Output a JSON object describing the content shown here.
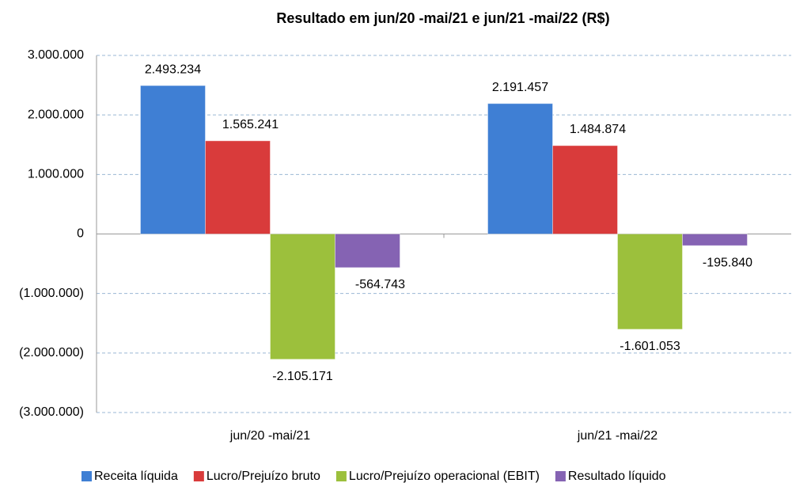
{
  "chart_data": {
    "type": "bar",
    "title": "Resultado em jun/20 -mai/21 e jun/21 -mai/22 (R$)",
    "categories": [
      "jun/20 -mai/21",
      "jun/21 -mai/22"
    ],
    "series": [
      {
        "name": "Receita líquida",
        "color": "#3f7fd4",
        "values": [
          2493234,
          2191457
        ],
        "value_labels": [
          "2.493.234",
          "2.191.457"
        ]
      },
      {
        "name": "Lucro/Prejuízo bruto",
        "color": "#d93b3b",
        "values": [
          1565241,
          1484874
        ],
        "value_labels": [
          "1.565.241",
          "1.484.874"
        ]
      },
      {
        "name": "Lucro/Prejuízo operacional (EBIT)",
        "color": "#9cc03c",
        "values": [
          -2105171,
          -1601053
        ],
        "value_labels": [
          "-2.105.171",
          "-1.601.053"
        ]
      },
      {
        "name": "Resultado líquido",
        "color": "#8563b3",
        "values": [
          -564743,
          -195840
        ],
        "value_labels": [
          "-564.743",
          "-195.840"
        ]
      }
    ],
    "ylim": [
      -3000000,
      3000000
    ],
    "yticks": [
      {
        "value": -3000000,
        "label": "(3.000.000)"
      },
      {
        "value": -2000000,
        "label": "(2.000.000)"
      },
      {
        "value": -1000000,
        "label": "(1.000.000)"
      },
      0,
      {
        "value": 1000000,
        "label": "1.000.000"
      },
      {
        "value": 2000000,
        "label": "2.000.000"
      },
      {
        "value": 3000000,
        "label": "3.000.000"
      }
    ],
    "grid": true,
    "legend": "bottom"
  }
}
